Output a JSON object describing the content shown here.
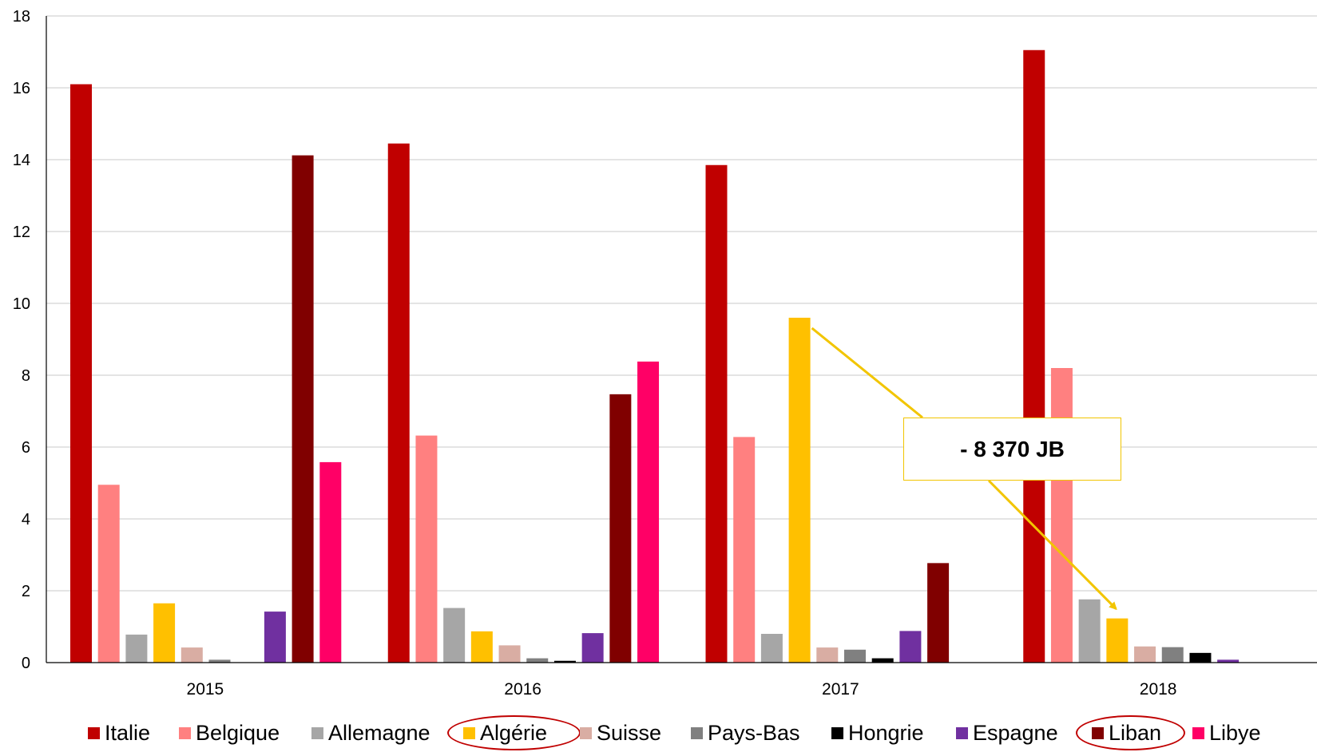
{
  "chart_data": {
    "type": "bar",
    "categories": [
      "2015",
      "2016",
      "2017",
      "2018"
    ],
    "ylim": [
      0,
      18
    ],
    "yticks": [
      0,
      2,
      4,
      6,
      8,
      10,
      12,
      14,
      16,
      18
    ],
    "grid": true,
    "legend_position": "bottom",
    "series": [
      {
        "name": "Italie",
        "color": "#c00000",
        "values": [
          16.1,
          14.45,
          13.85,
          17.05
        ]
      },
      {
        "name": "Belgique",
        "color": "#ff8080",
        "values": [
          4.95,
          6.32,
          6.28,
          8.2
        ]
      },
      {
        "name": "Allemagne",
        "color": "#a6a6a6",
        "values": [
          0.78,
          1.52,
          0.8,
          1.76
        ]
      },
      {
        "name": "Algérie",
        "color": "#ffc000",
        "values": [
          1.65,
          0.87,
          9.6,
          1.23
        ]
      },
      {
        "name": "Suisse",
        "color": "#d9ada3",
        "values": [
          0.42,
          0.48,
          0.42,
          0.45
        ]
      },
      {
        "name": "Pays-Bas",
        "color": "#808080",
        "values": [
          0.08,
          0.12,
          0.36,
          0.43
        ]
      },
      {
        "name": "Hongrie",
        "color": "#000000",
        "values": [
          0,
          0.05,
          0.12,
          0.27
        ]
      },
      {
        "name": "Espagne",
        "color": "#7030a0",
        "values": [
          1.42,
          0.82,
          0.88,
          0.08
        ]
      },
      {
        "name": "Liban",
        "color": "#800000",
        "values": [
          14.12,
          7.47,
          2.77,
          0
        ]
      },
      {
        "name": "Libye",
        "color": "#ff0066",
        "values": [
          5.58,
          8.38,
          0,
          0
        ]
      }
    ],
    "annotation": {
      "text": "- 8 370 JB",
      "from": {
        "series": "Algérie",
        "category": "2017"
      },
      "to": {
        "series": "Algérie",
        "category": "2018"
      },
      "color": "#f2c500"
    },
    "highlighted_legend": [
      "Algérie",
      "Liban"
    ]
  }
}
